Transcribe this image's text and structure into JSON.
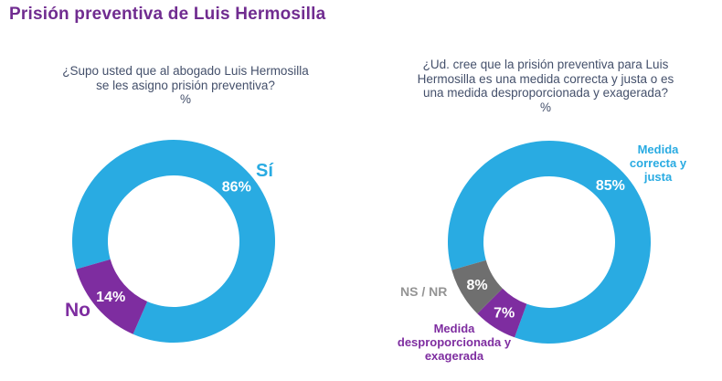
{
  "title": "Prisión preventiva de Luis Hermosilla",
  "colors": {
    "blue": "#29ABE2",
    "purple": "#7E2DA0",
    "gray": "#6F6F6F",
    "title": "#702C90",
    "question": "#44506B",
    "nsnr_label": "#949494",
    "pct_text": "#FFFFFF"
  },
  "chart_data": [
    {
      "type": "donut",
      "question_lines": [
        "¿Supo usted que al abogado Luis Hermosilla",
        "se les asigno prisión preventiva?"
      ],
      "unit": "%",
      "start_angle_deg": 254,
      "direction": "clockwise",
      "segments": [
        {
          "label": "Sí",
          "value": 86,
          "pct": "86%",
          "color": "blue"
        },
        {
          "label": "No",
          "value": 14,
          "pct": "14%",
          "color": "purple"
        }
      ]
    },
    {
      "type": "donut",
      "question_lines": [
        "¿Ud. cree que la prisión preventiva para Luis",
        "Hermosilla es una medida correcta y justa o es",
        "una medida desproporcionada y exagerada?"
      ],
      "unit": "%",
      "start_angle_deg": 254,
      "direction": "clockwise",
      "segments": [
        {
          "label": "Medida correcta y justa",
          "value": 85,
          "pct": "85%",
          "color": "blue"
        },
        {
          "label": "Medida desproporcionada y exagerada",
          "value": 7,
          "pct": "7%",
          "color": "purple"
        },
        {
          "label": "NS / NR",
          "value": 8,
          "pct": "8%",
          "color": "gray"
        }
      ]
    }
  ]
}
